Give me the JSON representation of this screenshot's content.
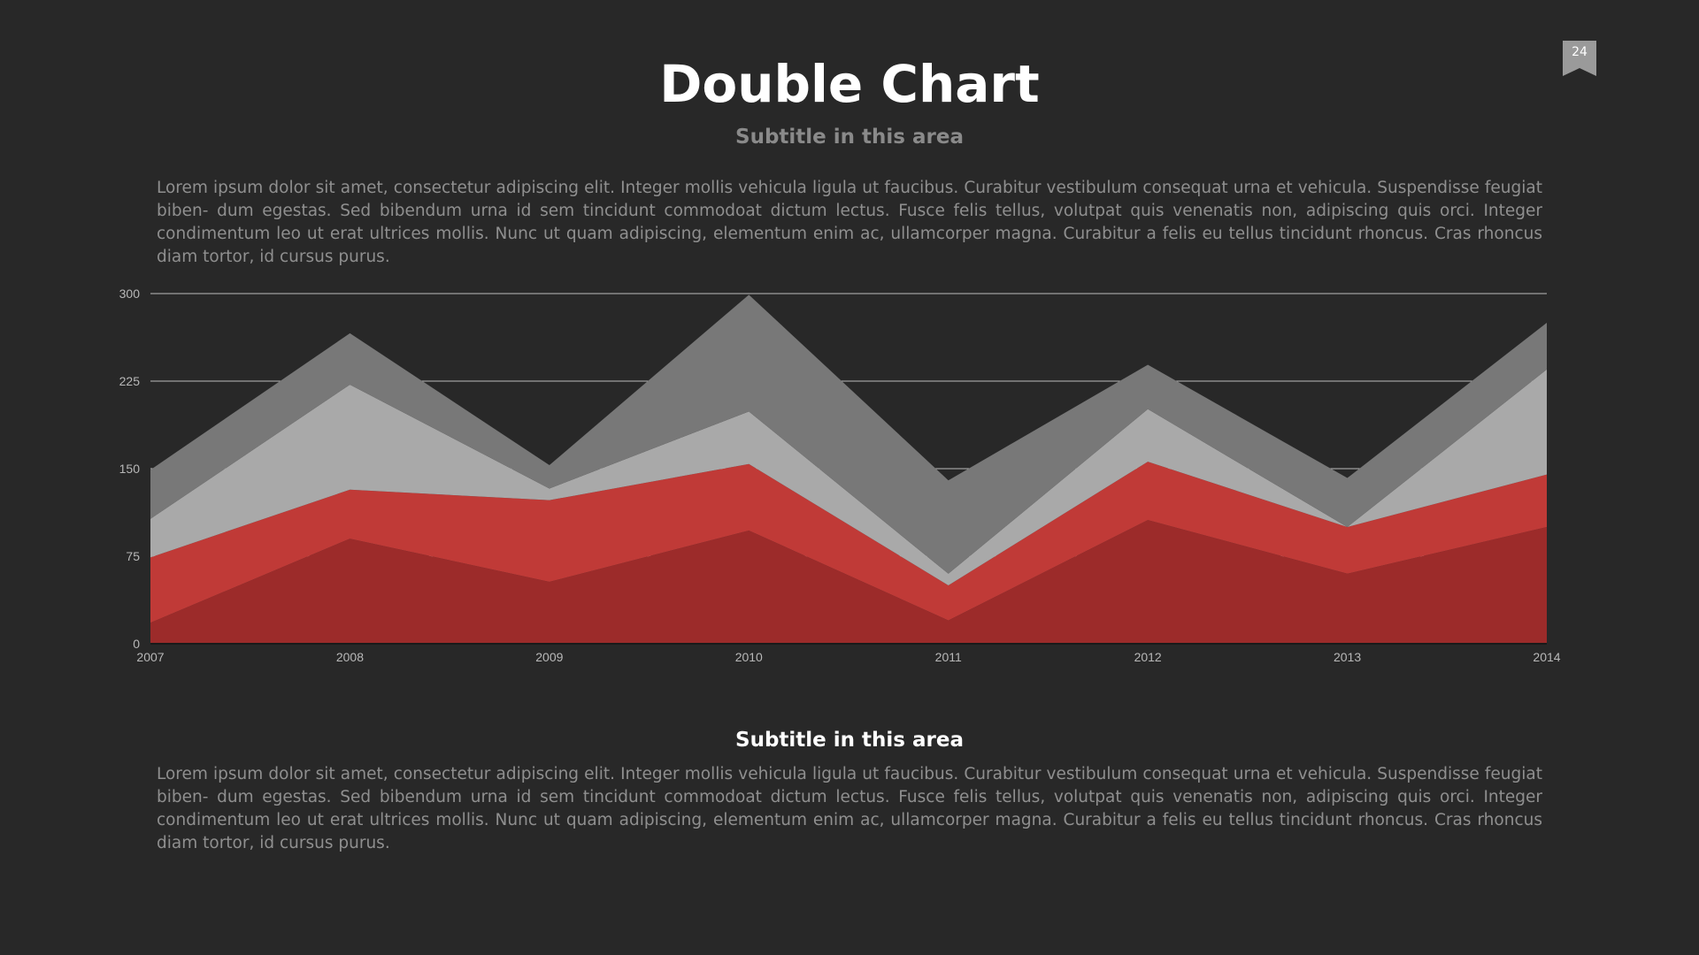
{
  "page": {
    "title": "Double Chart",
    "subtitle": "Subtitle in this area",
    "paragraph_top": "Lorem ipsum dolor sit amet, consectetur adipiscing elit. Integer mollis vehicula ligula ut faucibus. Curabitur vestibulum consequat urna et vehicula. Suspendisse feugiat biben- dum egestas. Sed bibendum urna id sem tincidunt commodoat dictum lectus. Fusce felis tellus, volutpat quis venenatis non, adipiscing quis orci. Integer condimentum leo ut erat ultrices mollis. Nunc ut quam adipiscing, elementum enim ac, ullamcorper magna. Curabitur a felis eu tellus tincidunt rhoncus. Cras rhoncus diam tortor, id cursus purus.",
    "section_subtitle": "Subtitle in this area",
    "paragraph_bottom": "Lorem ipsum dolor sit amet, consectetur adipiscing elit. Integer mollis vehicula ligula ut faucibus. Curabitur vestibulum consequat urna et vehicula. Suspendisse feugiat biben- dum egestas. Sed bibendum urna id sem tincidunt commodoat dictum lectus. Fusce felis tellus, volutpat quis venenatis non, adipiscing quis orci. Integer condimentum leo ut erat ultrices mollis. Nunc ut quam adipiscing, elementum enim ac, ullamcorper magna. Curabitur a felis eu tellus tincidunt rhoncus. Cras rhoncus diam tortor, id cursus purus.",
    "page_number": "24"
  },
  "colors": {
    "background": "#282828",
    "gridline": "#bdbdbd",
    "bookmark": "#9a9a9a"
  },
  "chart_data": {
    "type": "area",
    "stacked": true,
    "categories": [
      "2007",
      "2008",
      "2009",
      "2010",
      "2011",
      "2012",
      "2013",
      "2014"
    ],
    "ylim": [
      0,
      300
    ],
    "yticks": [
      0,
      75,
      150,
      225,
      300
    ],
    "grid": true,
    "series": [
      {
        "color": "#9c2b2a",
        "values": [
          18,
          90,
          53,
          97,
          20,
          106,
          60,
          100
        ]
      },
      {
        "color": "#c03a37",
        "values": [
          56,
          42,
          70,
          57,
          30,
          50,
          40,
          45
        ]
      },
      {
        "color": "#a9a9a9",
        "values": [
          33,
          90,
          10,
          45,
          10,
          45,
          0,
          90
        ]
      },
      {
        "color": "#787878",
        "values": [
          42,
          44,
          20,
          100,
          80,
          38,
          42,
          40
        ]
      }
    ]
  }
}
